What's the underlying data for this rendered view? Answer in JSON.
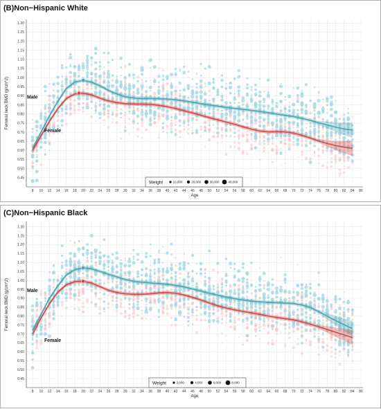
{
  "chart_data": [
    {
      "type": "scatter",
      "title": "(B)Non−Hispanic White",
      "xlabel": "Age",
      "ylabel": "Femoral neck BMD (g/cm^2)",
      "xlim": [
        6.5,
        86.5
      ],
      "ylim": [
        0.4,
        1.32
      ],
      "xticks": [
        8,
        10,
        12,
        14,
        16,
        18,
        20,
        22,
        24,
        26,
        28,
        30,
        32,
        34,
        36,
        38,
        40,
        42,
        44,
        46,
        48,
        50,
        52,
        54,
        56,
        58,
        60,
        62,
        64,
        66,
        68,
        70,
        72,
        74,
        76,
        78,
        80,
        82,
        84,
        86
      ],
      "yticks": [
        0.45,
        0.5,
        0.55,
        0.6,
        0.65,
        0.7,
        0.75,
        0.8,
        0.85,
        0.9,
        0.95,
        1.0,
        1.05,
        1.1,
        1.15,
        1.2,
        1.25,
        1.3
      ],
      "grid": true,
      "series": [
        {
          "name": "Male",
          "color": "#4aa5b3",
          "x": [
            8,
            10,
            12,
            14,
            16,
            18,
            20,
            22,
            24,
            26,
            28,
            30,
            32,
            34,
            36,
            38,
            40,
            42,
            44,
            46,
            48,
            50,
            52,
            54,
            56,
            58,
            60,
            62,
            64,
            66,
            68,
            70,
            72,
            74,
            76,
            78,
            80,
            82,
            84
          ],
          "y": [
            0.61,
            0.7,
            0.79,
            0.87,
            0.94,
            0.975,
            0.985,
            0.975,
            0.955,
            0.93,
            0.91,
            0.895,
            0.888,
            0.885,
            0.885,
            0.884,
            0.882,
            0.878,
            0.872,
            0.865,
            0.857,
            0.85,
            0.843,
            0.837,
            0.831,
            0.826,
            0.82,
            0.814,
            0.807,
            0.8,
            0.793,
            0.786,
            0.776,
            0.765,
            0.752,
            0.74,
            0.728,
            0.718,
            0.712
          ],
          "peak": {
            "x": 20,
            "y": 0.985
          }
        },
        {
          "name": "Female",
          "color": "#cc4b48",
          "x": [
            8,
            10,
            12,
            14,
            16,
            18,
            20,
            22,
            24,
            26,
            28,
            30,
            32,
            34,
            36,
            38,
            40,
            42,
            44,
            46,
            48,
            50,
            52,
            54,
            56,
            58,
            60,
            62,
            64,
            66,
            68,
            70,
            72,
            74,
            76,
            78,
            80,
            82,
            84
          ],
          "y": [
            0.6,
            0.68,
            0.76,
            0.83,
            0.885,
            0.91,
            0.915,
            0.905,
            0.887,
            0.872,
            0.863,
            0.857,
            0.855,
            0.855,
            0.853,
            0.848,
            0.84,
            0.83,
            0.818,
            0.806,
            0.793,
            0.78,
            0.768,
            0.756,
            0.744,
            0.73,
            0.717,
            0.707,
            0.702,
            0.703,
            0.702,
            0.695,
            0.683,
            0.668,
            0.652,
            0.638,
            0.627,
            0.618,
            0.612
          ],
          "peak": {
            "x": 19,
            "y": 0.915
          }
        }
      ],
      "legend": {
        "title": "Weight",
        "placement": "bottom-center",
        "labels": [
          "10,000",
          "20,000",
          "30,000",
          "40,000"
        ]
      },
      "point_colors": {
        "male": "#a8d9e6",
        "female": "#f5c3c3"
      }
    },
    {
      "type": "scatter",
      "title": "(C)Non−Hispanic Black",
      "xlabel": "Age",
      "ylabel": "Femoral neck BMD (g/cm^2)",
      "xlim": [
        6.5,
        86.5
      ],
      "ylim": [
        0.4,
        1.33
      ],
      "xticks": [
        8,
        10,
        12,
        14,
        16,
        18,
        20,
        22,
        24,
        26,
        28,
        30,
        32,
        34,
        36,
        38,
        40,
        42,
        44,
        46,
        48,
        50,
        52,
        54,
        56,
        58,
        60,
        62,
        64,
        66,
        68,
        70,
        72,
        74,
        76,
        78,
        80,
        82,
        84,
        86
      ],
      "yticks": [
        0.45,
        0.5,
        0.55,
        0.6,
        0.65,
        0.7,
        0.75,
        0.8,
        0.85,
        0.9,
        0.95,
        1.0,
        1.05,
        1.1,
        1.15,
        1.2,
        1.25,
        1.3
      ],
      "grid": true,
      "series": [
        {
          "name": "Male",
          "color": "#4aa5b3",
          "x": [
            8,
            10,
            12,
            14,
            16,
            18,
            20,
            22,
            24,
            26,
            28,
            30,
            32,
            34,
            36,
            38,
            40,
            42,
            44,
            46,
            48,
            50,
            52,
            54,
            56,
            58,
            60,
            62,
            64,
            66,
            68,
            70,
            72,
            74,
            76,
            78,
            80,
            82,
            84
          ],
          "y": [
            0.72,
            0.81,
            0.9,
            0.97,
            1.03,
            1.06,
            1.07,
            1.065,
            1.05,
            1.035,
            1.02,
            1.005,
            0.995,
            0.99,
            0.985,
            0.982,
            0.978,
            0.972,
            0.963,
            0.952,
            0.94,
            0.928,
            0.917,
            0.907,
            0.898,
            0.89,
            0.884,
            0.88,
            0.877,
            0.875,
            0.873,
            0.87,
            0.862,
            0.848,
            0.825,
            0.8,
            0.775,
            0.752,
            0.73
          ],
          "peak": {
            "x": 20,
            "y": 1.07
          }
        },
        {
          "name": "Female",
          "color": "#cc4b48",
          "x": [
            8,
            10,
            12,
            14,
            16,
            18,
            20,
            22,
            24,
            26,
            28,
            30,
            32,
            34,
            36,
            38,
            40,
            42,
            44,
            46,
            48,
            50,
            52,
            54,
            56,
            58,
            60,
            62,
            64,
            66,
            68,
            70,
            72,
            74,
            76,
            78,
            80,
            82,
            84
          ],
          "y": [
            0.7,
            0.79,
            0.87,
            0.935,
            0.975,
            0.993,
            0.995,
            0.985,
            0.965,
            0.945,
            0.932,
            0.925,
            0.922,
            0.922,
            0.925,
            0.93,
            0.932,
            0.928,
            0.918,
            0.905,
            0.89,
            0.873,
            0.858,
            0.845,
            0.835,
            0.826,
            0.818,
            0.81,
            0.8,
            0.792,
            0.786,
            0.779,
            0.768,
            0.755,
            0.74,
            0.725,
            0.71,
            0.695,
            0.68
          ],
          "peak": {
            "x": 20,
            "y": 0.995
          }
        }
      ],
      "legend": {
        "title": "Weight",
        "placement": "bottom-center",
        "labels": [
          "2,000",
          "4,000",
          "6,000",
          "8,000"
        ]
      },
      "point_colors": {
        "male": "#a8d9e6",
        "female": "#f5c3c3"
      }
    }
  ]
}
